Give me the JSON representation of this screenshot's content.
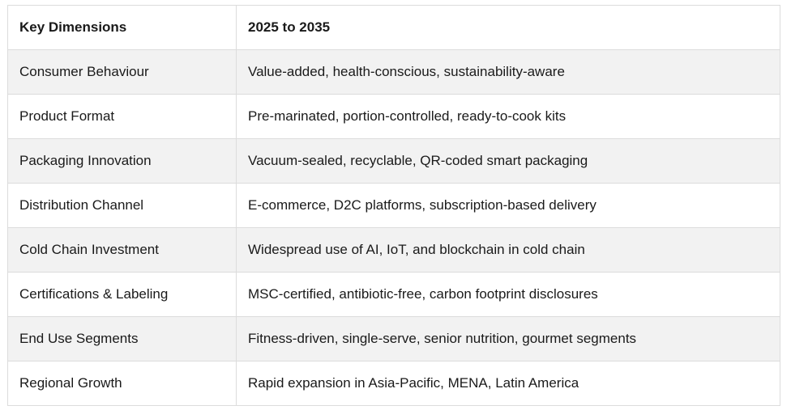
{
  "table": {
    "headers": [
      "Key Dimensions",
      "2025 to 2035"
    ],
    "rows": [
      [
        "Consumer Behaviour",
        "Value-added, health-conscious, sustainability-aware"
      ],
      [
        "Product Format",
        "Pre-marinated, portion-controlled, ready-to-cook kits"
      ],
      [
        "Packaging Innovation",
        "Vacuum-sealed, recyclable, QR-coded smart packaging"
      ],
      [
        "Distribution Channel",
        "E-commerce, D2C platforms, subscription-based delivery"
      ],
      [
        "Cold Chain Investment",
        "Widespread use of AI, IoT, and blockchain in cold chain"
      ],
      [
        "Certifications & Labeling",
        "MSC-certified, antibiotic-free, carbon footprint disclosures"
      ],
      [
        "End Use Segments",
        "Fitness-driven, single-serve, senior nutrition, gourmet segments"
      ],
      [
        "Regional Growth",
        "Rapid expansion in Asia-Pacific, MENA, Latin America"
      ]
    ]
  }
}
